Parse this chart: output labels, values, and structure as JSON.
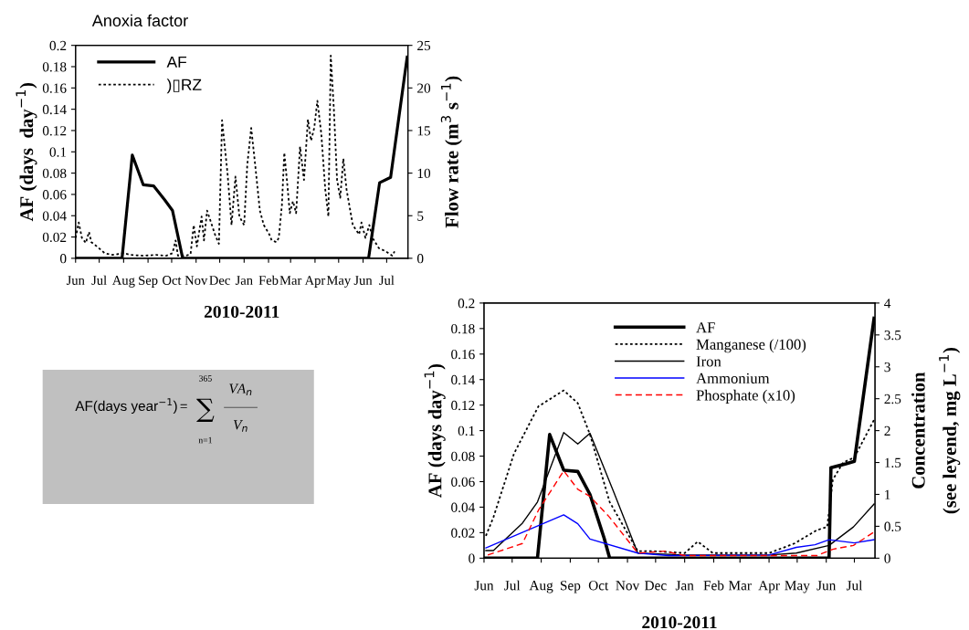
{
  "chart_data": [
    {
      "type": "line",
      "title": "Anoxia factor",
      "xlabel": "2010-2011",
      "ylabel": "AF (days  day$^{−1}$)",
      "y2label": "Flow rate (m$^{3}$ s$^{−1}$)",
      "xlim": [
        "2010-06-01",
        "2011-07-28"
      ],
      "xticks": [
        {
          "value": "2010-06",
          "label": "Jun"
        },
        {
          "value": "2010-07",
          "label": "Jul"
        },
        {
          "value": "2010-08",
          "label": "Aug"
        },
        {
          "value": "2010-09",
          "label": "Sep"
        },
        {
          "value": "2010-10",
          "label": "Oct"
        },
        {
          "value": "2010-11",
          "label": "Nov"
        },
        {
          "value": "2010-12",
          "label": "Dec"
        },
        {
          "value": "2011-01",
          "label": "Jan"
        },
        {
          "value": "2011-02",
          "label": "Feb"
        },
        {
          "value": "2011-03",
          "label": "Mar"
        },
        {
          "value": "2011-04",
          "label": "Apr"
        },
        {
          "value": "2011-05",
          "label": "May"
        },
        {
          "value": "2011-06",
          "label": "Jun"
        },
        {
          "value": "2011-07",
          "label": "Jul"
        }
      ],
      "ylim": [
        0,
        0.2
      ],
      "yticks": [
        0,
        0.02,
        0.04,
        0.06,
        0.08,
        0.1,
        0.12,
        0.14,
        0.16,
        0.18,
        0.2
      ],
      "y2lim": [
        0,
        25
      ],
      "y2ticks": [
        0,
        5,
        10,
        15,
        20,
        25
      ],
      "grid": false,
      "legend": "top left",
      "marker": "none",
      "series": [
        {
          "name": "AF",
          "color": "#000000",
          "line_style": "solid",
          "x": [
            "2010-06-01",
            "2010-07-30",
            "2010-08-12",
            "2010-08-26",
            "2010-09-08",
            "2010-09-22",
            "2010-10-02",
            "2010-10-15",
            "2011-06-08",
            "2011-06-22",
            "2011-07-06",
            "2011-07-27"
          ],
          "values": [
            0,
            0,
            0.097,
            0.069,
            0.068,
            0.055,
            0.045,
            0,
            0,
            0.071,
            0.076,
            0.189
          ]
        },
        {
          "name": ")▯RZ",
          "color": "#000000",
          "line_style": "dotted",
          "axis": "y2",
          "x": [
            "2010-06-01",
            "2010-06-05",
            "2010-06-09",
            "2010-06-14",
            "2010-06-18",
            "2010-06-21",
            "2010-06-28",
            "2010-07-08",
            "2010-07-18",
            "2010-07-25",
            "2010-08-01",
            "2010-08-10",
            "2010-08-26",
            "2010-09-11",
            "2010-09-24",
            "2010-10-02",
            "2010-10-06",
            "2010-10-09",
            "2010-10-19",
            "2010-10-25",
            "2010-10-29",
            "2010-11-02",
            "2010-11-08",
            "2010-11-11",
            "2010-11-15",
            "2010-11-20",
            "2010-11-25",
            "2010-11-30",
            "2010-12-04",
            "2010-12-11",
            "2010-12-16",
            "2010-12-21",
            "2010-12-26",
            "2011-01-01",
            "2011-01-05",
            "2011-01-10",
            "2011-01-15",
            "2011-01-21",
            "2011-01-26",
            "2011-02-02",
            "2011-02-05",
            "2011-02-11",
            "2011-02-14",
            "2011-02-18",
            "2011-02-21",
            "2011-02-25",
            "2011-02-28",
            "2011-03-04",
            "2011-03-08",
            "2011-03-13",
            "2011-03-18",
            "2011-03-23",
            "2011-03-27",
            "2011-03-31",
            "2011-04-04",
            "2011-04-09",
            "2011-04-14",
            "2011-04-18",
            "2011-04-21",
            "2011-04-25",
            "2011-04-29",
            "2011-05-03",
            "2011-05-07",
            "2011-05-11",
            "2011-05-19",
            "2011-05-27",
            "2011-05-30",
            "2011-06-04",
            "2011-06-09",
            "2011-06-13",
            "2011-06-21",
            "2011-06-30",
            "2011-07-08",
            "2011-07-11"
          ],
          "values": [
            2.4,
            4.2,
            2.4,
            1.8,
            3.1,
            1.9,
            1.4,
            0.6,
            0.4,
            0.5,
            0.6,
            0.4,
            0.3,
            0.4,
            0.3,
            0.6,
            2.1,
            0.3,
            0.3,
            0.5,
            3.9,
            1.4,
            4.9,
            2.1,
            5.6,
            4.2,
            2.8,
            1.7,
            16.2,
            9.9,
            3.9,
            9.6,
            4.9,
            3.9,
            11.0,
            15.3,
            11.0,
            5.6,
            3.9,
            2.8,
            2.1,
            1.9,
            2.4,
            6.3,
            12.4,
            8.5,
            5.3,
            6.7,
            5.3,
            13.1,
            9.2,
            16.3,
            13.8,
            15.3,
            18.5,
            14.6,
            8.1,
            4.9,
            23.8,
            17.4,
            9.2,
            7.1,
            11.7,
            8.1,
            3.9,
            2.8,
            4.2,
            2.4,
            3.9,
            2.4,
            1.2,
            0.8,
            0.3,
            0.8
          ]
        }
      ]
    },
    {
      "type": "other",
      "annotations": [
        "AF(days year$^{−1}$)",
        "=",
        "∑",
        "365",
        "n=1",
        "VA$_{n}$",
        "V$_{n}$"
      ]
    },
    {
      "type": "line",
      "xlabel": "2010-2011",
      "ylabel": "AF (days day$^{−1}$)",
      "y2label": "Concentration\n(see leyend, mg L$^{−1}$)",
      "xlim": [
        "2010-06-01",
        "2011-07-23"
      ],
      "xticks": [
        {
          "value": "2010-06",
          "label": "Jun"
        },
        {
          "value": "2010-07",
          "label": "Jul"
        },
        {
          "value": "2010-08",
          "label": "Aug"
        },
        {
          "value": "2010-09",
          "label": "Sep"
        },
        {
          "value": "2010-10",
          "label": "Oct"
        },
        {
          "value": "2010-11",
          "label": "Nov"
        },
        {
          "value": "2010-12",
          "label": "Dec"
        },
        {
          "value": "2011-01",
          "label": "Jan"
        },
        {
          "value": "2011-02",
          "label": "Feb"
        },
        {
          "value": "2011-03",
          "label": "Mar"
        },
        {
          "value": "2011-04",
          "label": "Apr"
        },
        {
          "value": "2011-05",
          "label": "May"
        },
        {
          "value": "2011-06",
          "label": "Jun"
        },
        {
          "value": "2011-07",
          "label": "Jul"
        }
      ],
      "ylim": [
        0,
        0.2
      ],
      "yticks": [
        0,
        0.02,
        0.04,
        0.06,
        0.08,
        0.1,
        0.12,
        0.14,
        0.16,
        0.18,
        0.2
      ],
      "y2lim": [
        0,
        4
      ],
      "y2ticks": [
        0,
        0.5,
        1,
        1.5,
        2,
        2.5,
        3,
        3.5,
        4
      ],
      "grid": false,
      "legend": "top",
      "marker": "none",
      "series": [
        {
          "name": "AF",
          "color": "#000000",
          "line_style": "solid",
          "x": [
            "2010-06-01",
            "2010-07-28",
            "2010-08-10",
            "2010-08-25",
            "2010-09-09",
            "2010-09-22",
            "2010-10-07",
            "2010-10-13",
            "2011-06-04",
            "2011-06-06",
            "2011-06-22",
            "2011-07-01",
            "2011-07-22"
          ],
          "values": [
            0,
            0,
            0.097,
            0.069,
            0.068,
            0.05,
            0.016,
            0,
            0,
            0.071,
            0.074,
            0.076,
            0.188
          ]
        },
        {
          "name": "Manganese (/100)",
          "color": "#000000",
          "line_style": "dotted",
          "axis": "y2",
          "x": [
            "2010-06-03",
            "2010-06-11",
            "2010-07-03",
            "2010-07-29",
            "2010-08-25",
            "2010-09-09",
            "2010-09-22",
            "2010-10-13",
            "2010-11-12",
            "2010-11-29",
            "2011-01-01",
            "2011-01-15",
            "2011-01-31",
            "2011-04-01",
            "2011-04-28",
            "2011-05-22",
            "2011-06-02",
            "2011-06-08",
            "2011-06-19",
            "2011-07-01",
            "2011-07-22"
          ],
          "values": [
            0.35,
            0.64,
            1.64,
            2.38,
            2.63,
            2.43,
            1.94,
            0.88,
            0.11,
            0.11,
            0.08,
            0.26,
            0.08,
            0.08,
            0.23,
            0.44,
            0.49,
            1.23,
            1.5,
            1.58,
            2.17
          ]
        },
        {
          "name": "Iron",
          "color": "#000000",
          "line_style": "solid",
          "axis": "y2",
          "x": [
            "2010-06-03",
            "2010-06-11",
            "2010-07-12",
            "2010-07-28",
            "2010-08-25",
            "2010-09-09",
            "2010-09-22",
            "2010-10-17",
            "2010-11-12",
            "2011-01-01",
            "2011-04-01",
            "2011-04-30",
            "2011-06-04",
            "2011-06-30",
            "2011-07-22"
          ],
          "values": [
            0.12,
            0.12,
            0.55,
            0.88,
            1.97,
            1.79,
            1.96,
            1.05,
            0.08,
            0.05,
            0.05,
            0.08,
            0.2,
            0.49,
            0.85
          ]
        },
        {
          "name": "Ammonium",
          "color": "#0000ff",
          "line_style": "solid",
          "axis": "y2",
          "x": [
            "2010-06-03",
            "2010-08-25",
            "2010-09-09",
            "2010-09-22",
            "2010-11-12",
            "2010-12-15",
            "2011-04-01",
            "2011-04-30",
            "2011-05-20",
            "2011-06-04",
            "2011-07-01",
            "2011-07-22"
          ],
          "values": [
            0.16,
            0.68,
            0.54,
            0.3,
            0.08,
            0.04,
            0.05,
            0.17,
            0.21,
            0.29,
            0.24,
            0.29
          ]
        },
        {
          "name": "Phosphate (x10)",
          "color": "#ff0000",
          "line_style": "dashed",
          "axis": "y2",
          "x": [
            "2010-06-05",
            "2010-06-30",
            "2010-07-12",
            "2010-07-29",
            "2010-08-25",
            "2010-09-09",
            "2010-09-22",
            "2010-10-13",
            "2010-11-12",
            "2010-12-11",
            "2011-01-01",
            "2011-04-01",
            "2011-05-22",
            "2011-06-08",
            "2011-06-30",
            "2011-07-22"
          ],
          "values": [
            0.05,
            0.17,
            0.23,
            0.75,
            1.37,
            1.08,
            0.97,
            0.64,
            0.08,
            0.11,
            0.04,
            0.04,
            0.04,
            0.14,
            0.2,
            0.41
          ]
        }
      ]
    }
  ]
}
